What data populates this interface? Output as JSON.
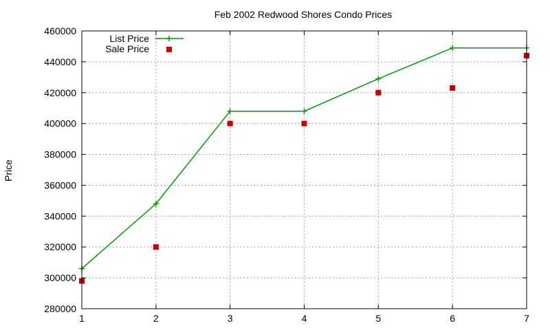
{
  "chart_data": {
    "type": "line",
    "title": "Feb 2002 Redwood Shores Condo Prices",
    "xlabel": "",
    "ylabel": "Price",
    "x": [
      1,
      2,
      3,
      4,
      5,
      6,
      7
    ],
    "xlim": [
      1,
      7
    ],
    "ylim": [
      280000,
      460000
    ],
    "xticks": [
      1,
      2,
      3,
      4,
      5,
      6,
      7
    ],
    "yticks": [
      280000,
      300000,
      320000,
      340000,
      360000,
      380000,
      400000,
      420000,
      440000,
      460000
    ],
    "grid": true,
    "legend_position": "top-left",
    "series": [
      {
        "name": "List Price",
        "style": "line-with-plus-markers",
        "color": "#009900",
        "values": [
          306000,
          348000,
          408000,
          408000,
          429000,
          449000,
          449000
        ]
      },
      {
        "name": "Sale Price",
        "style": "square-points",
        "color": "#cc0000",
        "values": [
          298000,
          320000,
          400000,
          400000,
          420000,
          423000,
          444000
        ]
      }
    ]
  }
}
